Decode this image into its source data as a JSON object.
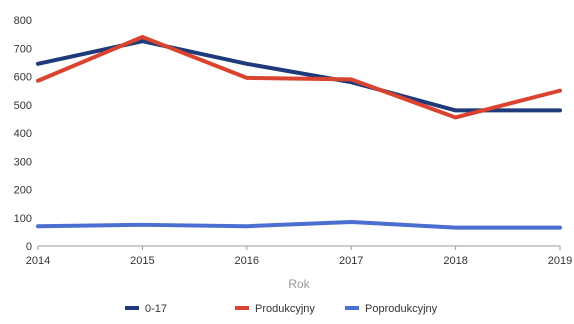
{
  "chart_data": {
    "type": "line",
    "xlabel": "Rok",
    "ylabel": "",
    "x": [
      2014,
      2015,
      2016,
      2017,
      2018,
      2019
    ],
    "ylim": [
      0,
      800
    ],
    "yticks": [
      0,
      100,
      200,
      300,
      400,
      500,
      600,
      700,
      800
    ],
    "grid": false,
    "legend": "bottom",
    "series": [
      {
        "name": "0-17",
        "color": "#1f3a7a",
        "values": [
          645,
          725,
          645,
          580,
          480,
          480
        ]
      },
      {
        "name": "Produkcyjny",
        "color": "#d9432f",
        "values": [
          585,
          740,
          595,
          590,
          455,
          550
        ]
      },
      {
        "name": "Poprodukcyjny",
        "color": "#4a6fd1",
        "values": [
          70,
          75,
          70,
          85,
          65,
          65
        ]
      }
    ]
  }
}
